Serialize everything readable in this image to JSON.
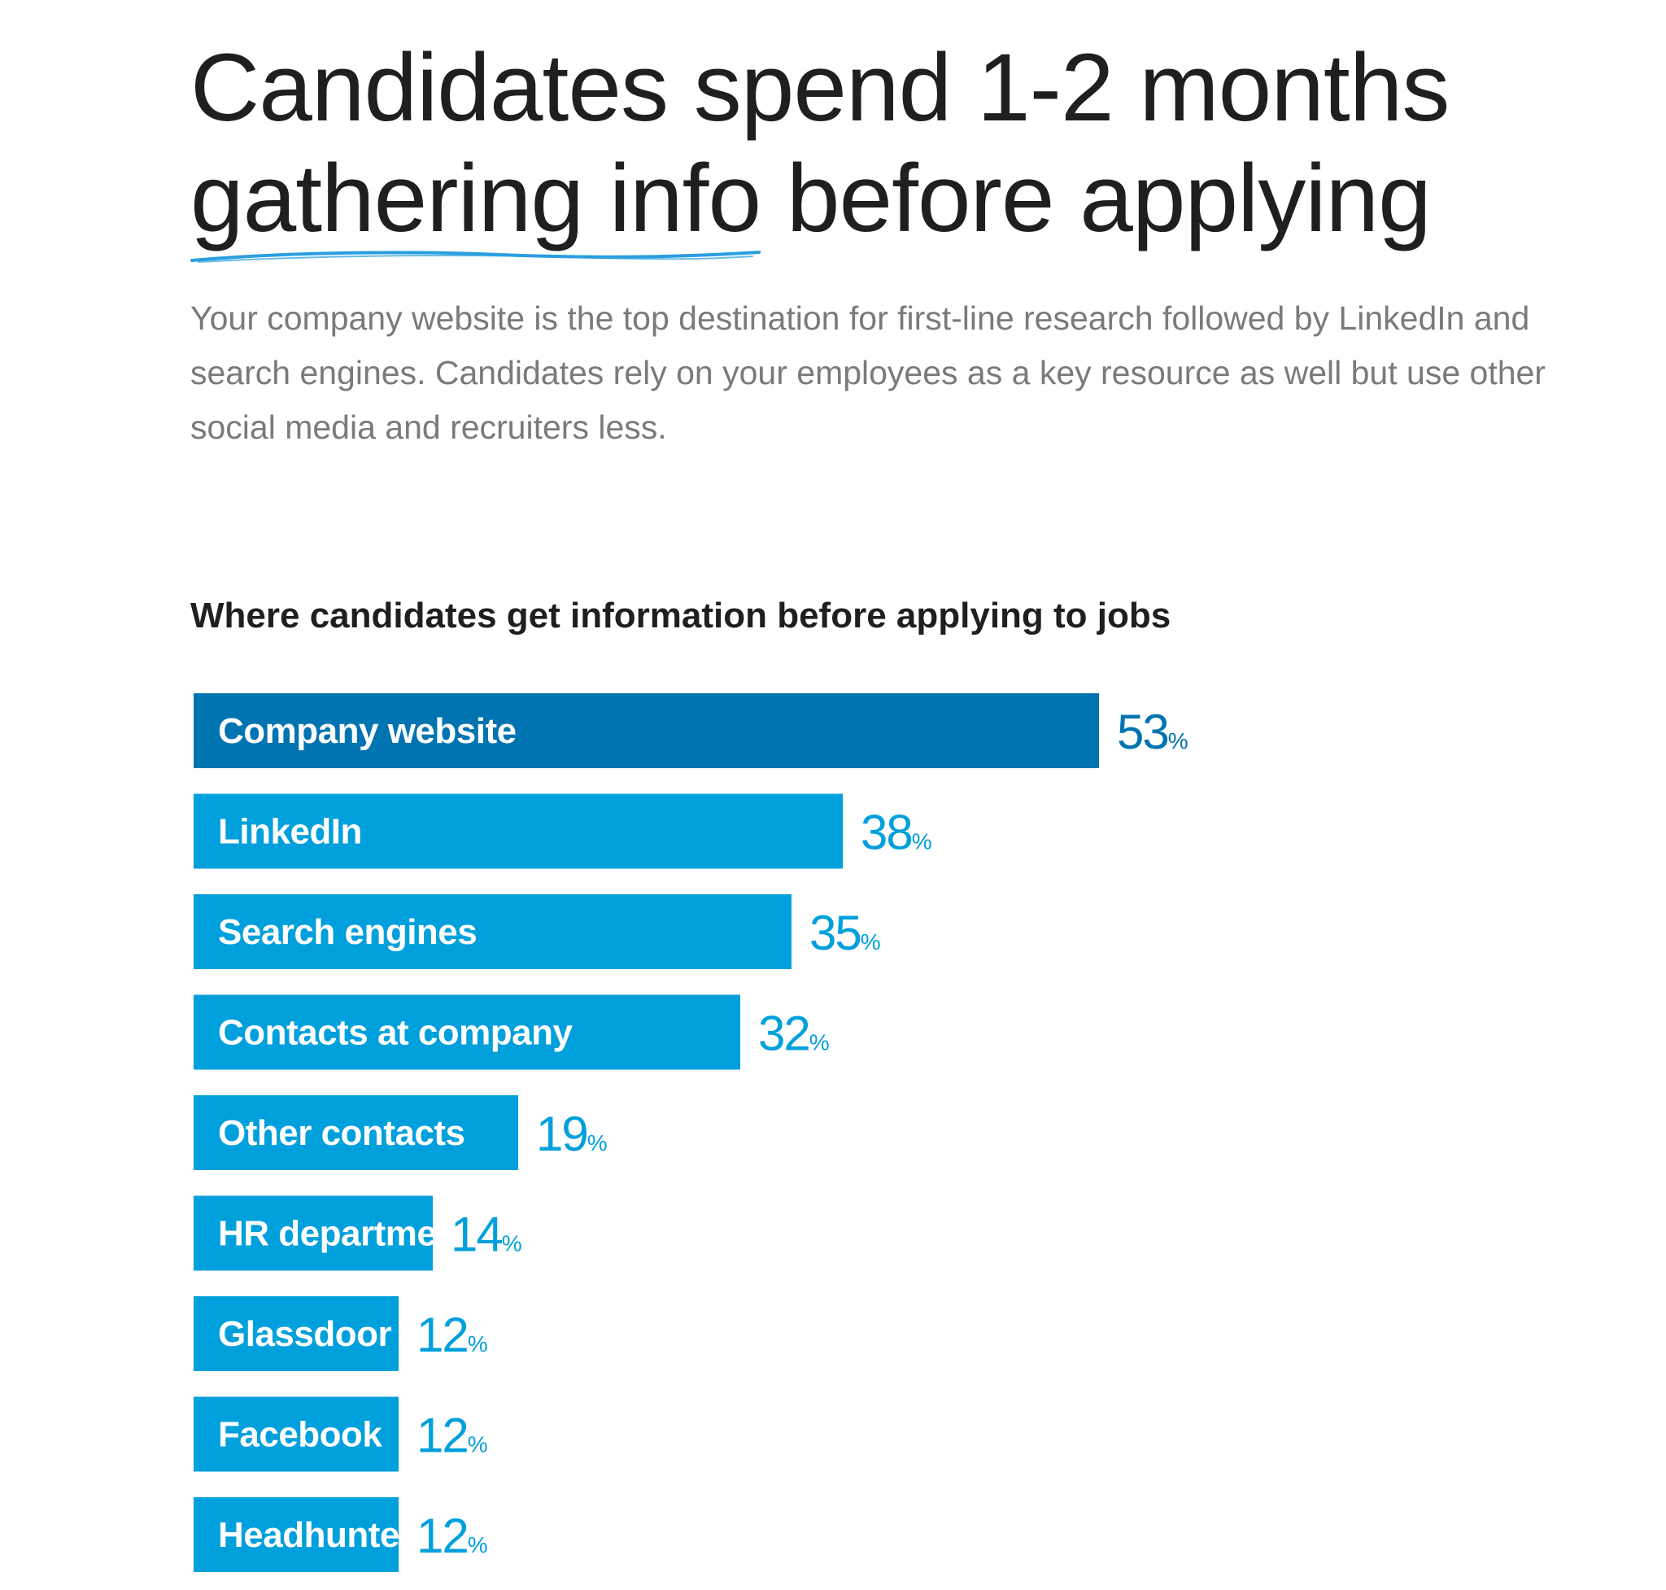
{
  "header": {
    "title_line1": "Candidates spend 1-2 months",
    "title_line2_underlined": "gathering info",
    "title_line2_rest": " before applying",
    "subtitle": "Your company website is the top destination for first-line research followed by LinkedIn and search engines. Candidates rely on your employees as a key resource as well but use other social media and recruiters less."
  },
  "colors": {
    "highlight_bar": "#0073b1",
    "bar": "#00a0dc",
    "highlight_value": "#0073b1",
    "value": "#00a0dc",
    "underline": "#2a9ee0"
  },
  "chart_data": {
    "type": "bar",
    "orientation": "horizontal",
    "title": "Where candidates get information before applying to jobs",
    "categories": [
      "Company website",
      "LinkedIn",
      "Search engines",
      "Contacts at company",
      "Other contacts",
      "HR department",
      "Glassdoor",
      "Facebook",
      "Headhunter"
    ],
    "values": [
      53,
      38,
      35,
      32,
      19,
      14,
      12,
      12,
      12
    ],
    "value_suffix": "%",
    "highlight_index": 0,
    "xlabel": "",
    "ylabel": "",
    "grid": false
  }
}
